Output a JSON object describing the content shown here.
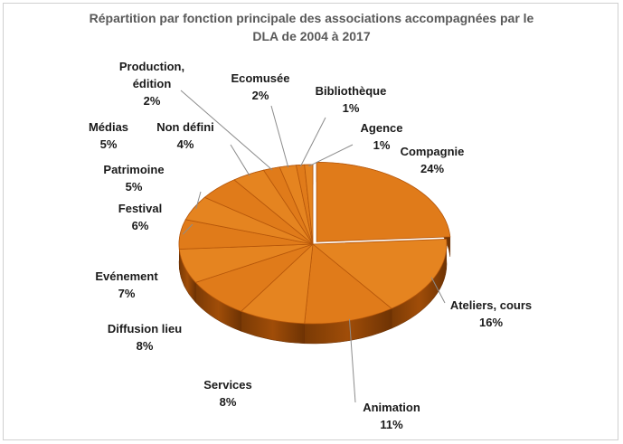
{
  "chart_data": {
    "type": "pie",
    "title_lines": [
      "Répartition par fonction principale des associations accompagnées par le",
      "DLA de 2004 à 2017"
    ],
    "slices": [
      {
        "name": "Compagnie",
        "value": 24,
        "label": "24%"
      },
      {
        "name": "Ateliers, cours",
        "value": 16,
        "label": "16%"
      },
      {
        "name": "Animation",
        "value": 11,
        "label": "11%"
      },
      {
        "name": "Services",
        "value": 8,
        "label": "8%"
      },
      {
        "name": "Diffusion lieu",
        "value": 8,
        "label": "8%"
      },
      {
        "name": "Evénement",
        "value": 7,
        "label": "7%"
      },
      {
        "name": "Festival",
        "value": 6,
        "label": "6%"
      },
      {
        "name": "Patrimoine",
        "value": 5,
        "label": "5%"
      },
      {
        "name": "Médias",
        "value": 5,
        "label": "5%"
      },
      {
        "name": "Non défini",
        "value": 4,
        "label": "4%"
      },
      {
        "name": "Production, édition",
        "value": 2,
        "label": "2%"
      },
      {
        "name": "Ecomusée",
        "value": 2,
        "label": "2%"
      },
      {
        "name": "Bibliothèque",
        "value": 1,
        "label": "1%"
      },
      {
        "name": "Agence",
        "value": 1,
        "label": "1%"
      }
    ],
    "color": "#e07b1a",
    "style": "3d-exploded-pie"
  }
}
